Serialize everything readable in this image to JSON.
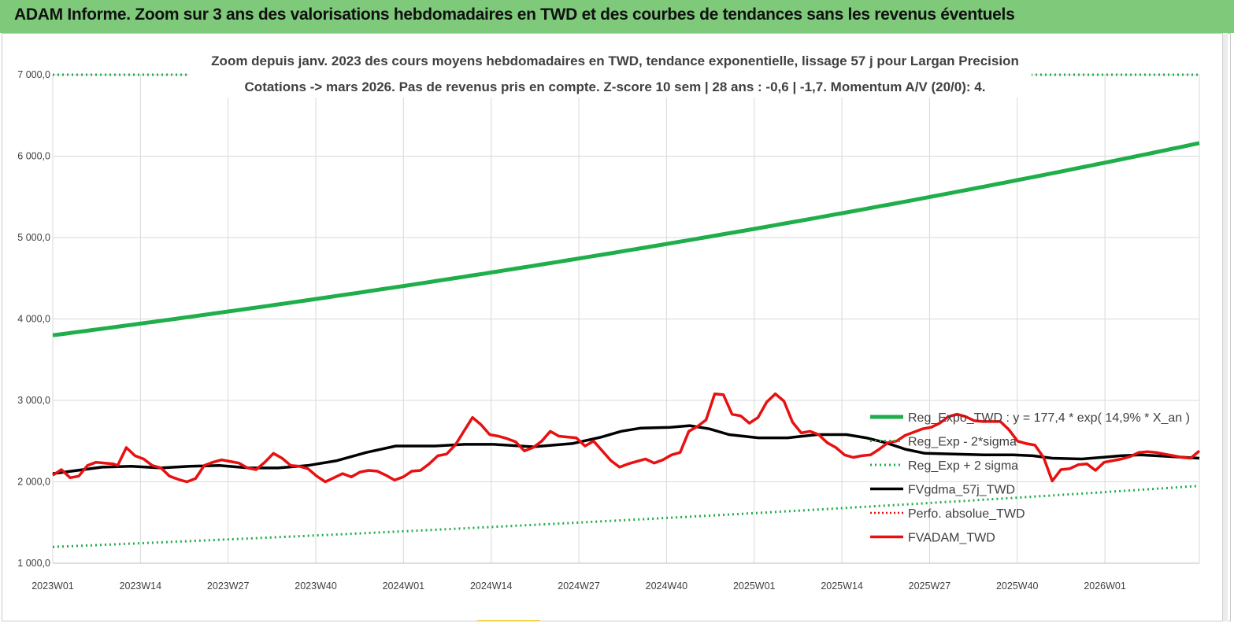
{
  "banner": {
    "title": "ADAM Informe. Zoom sur 3 ans des valorisations hebdomadaires en TWD et des courbes de tendances sans les revenus éventuels"
  },
  "colors": {
    "banner_bg": "#7ec97a",
    "reg_expo": "#1fae4a",
    "reg_dotted": "#1fae4a",
    "gdma": "#000000",
    "perfo": "#e81010",
    "adam": "#e81010",
    "grid": "#d9d9d9"
  },
  "chart_data": {
    "type": "line",
    "title_line1": "Zoom depuis janv. 2023 des cours moyens hebdomadaires en TWD, tendance exponentielle, lissage 57 j pour Largan Precision",
    "title_line2": "Cotations -> mars 2026. Pas de revenus pris en  compte. Z-score 10 sem  | 28 ans : -0,6 | -1,7. Momentum A/V (20/0): 4.",
    "ylim": [
      1000,
      7000
    ],
    "yticks": [
      "1 000,0",
      "2 000,0",
      "3 000,0",
      "4 000,0",
      "5 000,0",
      "6 000,0",
      "7 000,0"
    ],
    "xticks": [
      "2023W01",
      "2023W14",
      "2023W27",
      "2023W40",
      "2024W01",
      "2024W14",
      "2024W27",
      "2024W40",
      "2025W01",
      "2025W14",
      "2025W27",
      "2025W40",
      "2026W01"
    ],
    "n_weeks": 170,
    "series": [
      {
        "name": "Reg_Expo_TWD : y = 177,4 * exp( 14,9% *  X_an )",
        "style": "solid-thick",
        "start": 3800,
        "end": 6160
      },
      {
        "name": "Reg_Exp - 2*sigma",
        "style": "dotted",
        "start": 1200,
        "end": 1950
      },
      {
        "name": "Reg_Exp + 2 sigma",
        "style": "dotted",
        "start": 7000,
        "end": 7000
      },
      {
        "name": "FVgdma_57j_TWD",
        "style": "solid",
        "points": [
          [
            0,
            2100
          ],
          [
            10,
            2180
          ],
          [
            16,
            2190
          ],
          [
            22,
            2170
          ],
          [
            28,
            2190
          ],
          [
            34,
            2200
          ],
          [
            40,
            2170
          ],
          [
            46,
            2170
          ],
          [
            52,
            2200
          ],
          [
            58,
            2260
          ],
          [
            64,
            2360
          ],
          [
            70,
            2440
          ],
          [
            78,
            2440
          ],
          [
            84,
            2460
          ],
          [
            90,
            2460
          ],
          [
            98,
            2430
          ],
          [
            106,
            2470
          ],
          [
            112,
            2550
          ],
          [
            116,
            2620
          ],
          [
            120,
            2660
          ],
          [
            126,
            2670
          ],
          [
            130,
            2690
          ],
          [
            134,
            2650
          ],
          [
            138,
            2580
          ],
          [
            144,
            2540
          ],
          [
            150,
            2540
          ],
          [
            156,
            2580
          ],
          [
            162,
            2580
          ],
          [
            166,
            2540
          ],
          [
            170,
            2480
          ],
          [
            174,
            2400
          ],
          [
            178,
            2350
          ],
          [
            184,
            2340
          ],
          [
            190,
            2330
          ],
          [
            196,
            2330
          ],
          [
            200,
            2320
          ],
          [
            204,
            2290
          ],
          [
            210,
            2280
          ],
          [
            214,
            2300
          ],
          [
            218,
            2320
          ],
          [
            222,
            2330
          ],
          [
            228,
            2310
          ],
          [
            234,
            2290
          ]
        ]
      },
      {
        "name": "Perfo. absolue_TWD",
        "style": "dotted",
        "points": []
      },
      {
        "name": "FVADAM_TWD",
        "style": "solid",
        "points": [
          [
            0,
            2080
          ],
          [
            2,
            2150
          ],
          [
            4,
            2050
          ],
          [
            6,
            2070
          ],
          [
            8,
            2200
          ],
          [
            10,
            2240
          ],
          [
            12,
            2230
          ],
          [
            14,
            2220
          ],
          [
            15,
            2200
          ],
          [
            17,
            2420
          ],
          [
            19,
            2320
          ],
          [
            21,
            2280
          ],
          [
            23,
            2200
          ],
          [
            25,
            2170
          ],
          [
            27,
            2070
          ],
          [
            29,
            2030
          ],
          [
            31,
            2000
          ],
          [
            33,
            2040
          ],
          [
            35,
            2200
          ],
          [
            37,
            2240
          ],
          [
            39,
            2270
          ],
          [
            41,
            2250
          ],
          [
            43,
            2230
          ],
          [
            45,
            2170
          ],
          [
            47,
            2150
          ],
          [
            49,
            2240
          ],
          [
            51,
            2350
          ],
          [
            53,
            2290
          ],
          [
            55,
            2200
          ],
          [
            57,
            2190
          ],
          [
            59,
            2160
          ],
          [
            61,
            2070
          ],
          [
            63,
            2000
          ],
          [
            65,
            2050
          ],
          [
            67,
            2100
          ],
          [
            69,
            2060
          ],
          [
            71,
            2120
          ],
          [
            73,
            2140
          ],
          [
            75,
            2130
          ],
          [
            77,
            2080
          ],
          [
            79,
            2020
          ],
          [
            81,
            2060
          ],
          [
            83,
            2130
          ],
          [
            85,
            2140
          ],
          [
            87,
            2220
          ],
          [
            89,
            2320
          ],
          [
            91,
            2340
          ],
          [
            93,
            2450
          ],
          [
            95,
            2620
          ],
          [
            97,
            2790
          ],
          [
            99,
            2700
          ],
          [
            101,
            2580
          ],
          [
            103,
            2560
          ],
          [
            105,
            2530
          ],
          [
            107,
            2490
          ],
          [
            109,
            2380
          ],
          [
            111,
            2420
          ],
          [
            113,
            2500
          ],
          [
            115,
            2620
          ],
          [
            117,
            2560
          ],
          [
            119,
            2550
          ],
          [
            121,
            2540
          ],
          [
            123,
            2440
          ],
          [
            125,
            2500
          ],
          [
            127,
            2380
          ],
          [
            129,
            2260
          ],
          [
            131,
            2180
          ],
          [
            133,
            2220
          ],
          [
            135,
            2250
          ],
          [
            137,
            2280
          ],
          [
            139,
            2230
          ],
          [
            141,
            2270
          ],
          [
            143,
            2330
          ],
          [
            145,
            2360
          ],
          [
            147,
            2620
          ],
          [
            149,
            2680
          ],
          [
            151,
            2760
          ],
          [
            153,
            3080
          ],
          [
            155,
            3070
          ],
          [
            157,
            2830
          ],
          [
            159,
            2810
          ],
          [
            161,
            2720
          ],
          [
            163,
            2790
          ],
          [
            165,
            2980
          ],
          [
            167,
            3080
          ],
          [
            169,
            2990
          ],
          [
            171,
            2730
          ],
          [
            173,
            2600
          ],
          [
            175,
            2620
          ],
          [
            177,
            2580
          ],
          [
            179,
            2480
          ],
          [
            181,
            2420
          ],
          [
            183,
            2330
          ],
          [
            185,
            2300
          ],
          [
            187,
            2320
          ],
          [
            189,
            2330
          ],
          [
            191,
            2400
          ],
          [
            193,
            2480
          ],
          [
            195,
            2500
          ],
          [
            197,
            2570
          ],
          [
            199,
            2610
          ],
          [
            201,
            2650
          ],
          [
            203,
            2670
          ],
          [
            205,
            2720
          ],
          [
            207,
            2800
          ],
          [
            209,
            2830
          ],
          [
            211,
            2800
          ],
          [
            213,
            2750
          ],
          [
            215,
            2740
          ],
          [
            217,
            2740
          ],
          [
            219,
            2740
          ],
          [
            221,
            2640
          ],
          [
            223,
            2500
          ],
          [
            225,
            2470
          ],
          [
            227,
            2450
          ],
          [
            229,
            2300
          ],
          [
            231,
            2010
          ],
          [
            233,
            2150
          ],
          [
            235,
            2160
          ],
          [
            237,
            2210
          ],
          [
            239,
            2220
          ],
          [
            241,
            2140
          ],
          [
            243,
            2240
          ],
          [
            245,
            2260
          ],
          [
            247,
            2280
          ],
          [
            249,
            2310
          ],
          [
            251,
            2360
          ],
          [
            253,
            2370
          ],
          [
            255,
            2360
          ],
          [
            257,
            2340
          ],
          [
            259,
            2320
          ],
          [
            261,
            2300
          ],
          [
            263,
            2290
          ],
          [
            265,
            2380
          ]
        ]
      }
    ],
    "legend_position": "right"
  }
}
